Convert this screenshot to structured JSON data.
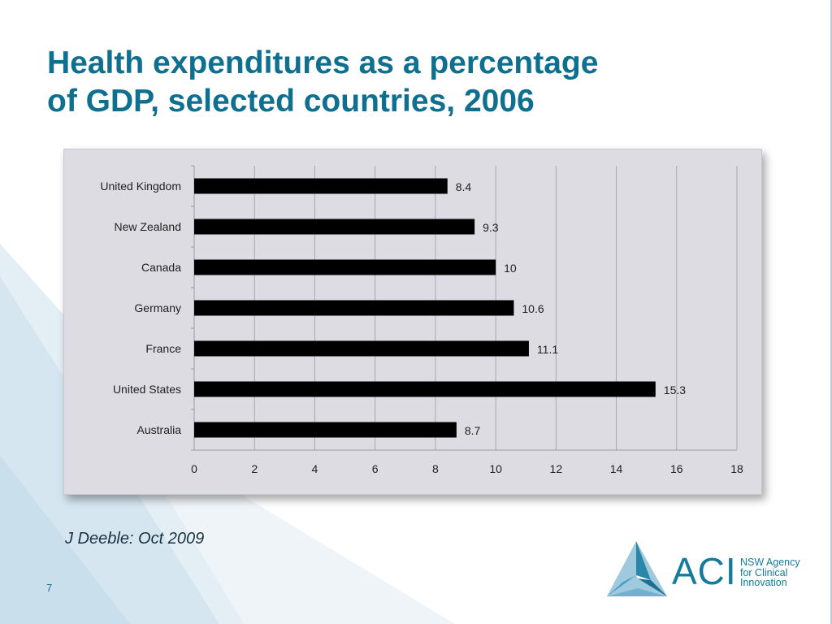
{
  "slide": {
    "title_lines": [
      "Health expenditures as a percentage",
      "of GDP, selected countries, 2006"
    ],
    "citation": "J Deeble: Oct 2009",
    "page_number": "7"
  },
  "logo": {
    "acronym": "ACI",
    "name_lines": [
      "NSW Agency",
      "for Clinical",
      "Innovation"
    ]
  },
  "colors": {
    "title": "#0e6f8f",
    "bar": "#000000",
    "plot_bg": "#dcdce2",
    "gridline": "#a8a8ae",
    "accent_blue": "#157a9c"
  },
  "chart_data": {
    "type": "bar",
    "orientation": "horizontal",
    "categories": [
      "United Kingdom",
      "New Zealand",
      "Canada",
      "Germany",
      "France",
      "United States",
      "Australia"
    ],
    "values": [
      8.4,
      9.3,
      10,
      10.6,
      11.1,
      15.3,
      8.7
    ],
    "value_labels": [
      "8.4",
      "9.3",
      "10",
      "10.6",
      "11.1",
      "15.3",
      "8.7"
    ],
    "xlim": [
      0,
      18
    ],
    "xticks": [
      0,
      2,
      4,
      6,
      8,
      10,
      12,
      14,
      16,
      18
    ],
    "grid": true,
    "legend": "none",
    "title": "",
    "xlabel": "",
    "ylabel": ""
  }
}
